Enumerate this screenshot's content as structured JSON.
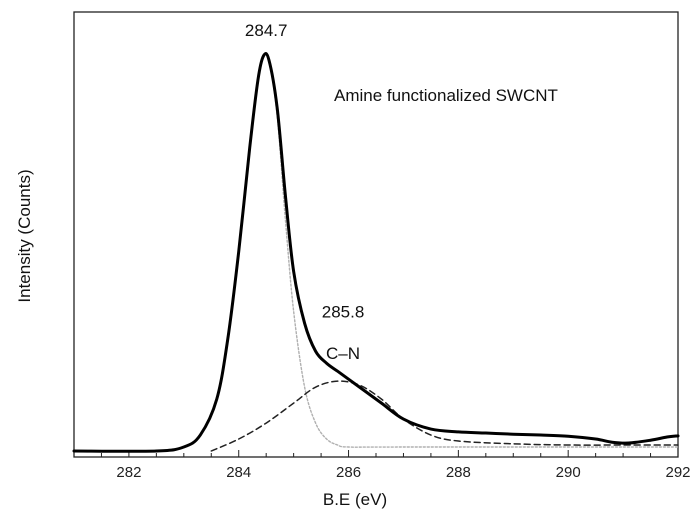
{
  "chart_data": {
    "type": "line",
    "title": "",
    "inset_label": "Amine functionalized SWCNT",
    "xlabel": "B.E (eV)",
    "ylabel": "Intensity (Counts)",
    "xlim": [
      281,
      292
    ],
    "ylim": [
      0,
      1
    ],
    "y_ticks_shown": false,
    "grid": false,
    "legend": "none",
    "x_ticks": [
      282,
      284,
      286,
      288,
      290,
      292
    ],
    "x_tick_labels": [
      "282",
      "284",
      "286",
      "288",
      "290",
      "292"
    ],
    "annotations": [
      {
        "text": "284.7",
        "x": 284.5,
        "y": 1.0
      },
      {
        "text": "285.8",
        "x": 285.9,
        "y": 0.28
      },
      {
        "text": "C–N",
        "x": 285.9,
        "y": 0.23
      }
    ],
    "series": [
      {
        "style": "solid-thick",
        "color": "#000000",
        "x": [
          281.0,
          282.5,
          283.0,
          283.3,
          283.6,
          283.8,
          284.0,
          284.2,
          284.35,
          284.45,
          284.55,
          284.7,
          284.85,
          285.0,
          285.2,
          285.4,
          285.6,
          285.8,
          286.0,
          286.3,
          286.6,
          287.0,
          287.5,
          288.0,
          288.5,
          289.0,
          289.5,
          290.0,
          290.5,
          290.8,
          291.1,
          291.5,
          291.8,
          292.0
        ],
        "y": [
          0.0,
          0.0,
          0.01,
          0.04,
          0.13,
          0.28,
          0.5,
          0.76,
          0.93,
          0.99,
          0.98,
          0.86,
          0.64,
          0.45,
          0.32,
          0.25,
          0.22,
          0.2,
          0.18,
          0.15,
          0.12,
          0.08,
          0.055,
          0.048,
          0.045,
          0.042,
          0.04,
          0.037,
          0.03,
          0.022,
          0.02,
          0.027,
          0.035,
          0.038
        ]
      },
      {
        "style": "dotted",
        "color": "#b0b0b0",
        "x": [
          282.5,
          283.0,
          283.3,
          283.6,
          283.8,
          284.0,
          284.2,
          284.35,
          284.45,
          284.55,
          284.7,
          284.85,
          285.0,
          285.2,
          285.4,
          285.6,
          285.8,
          286.0,
          287.0,
          292.0
        ],
        "y": [
          0.0,
          0.01,
          0.04,
          0.13,
          0.28,
          0.5,
          0.76,
          0.93,
          0.99,
          0.98,
          0.84,
          0.58,
          0.35,
          0.16,
          0.07,
          0.03,
          0.015,
          0.01,
          0.01,
          0.01
        ]
      },
      {
        "style": "dashed",
        "color": "#222222",
        "x": [
          283.5,
          284.0,
          284.5,
          285.0,
          285.4,
          285.8,
          286.2,
          286.6,
          287.0,
          287.5,
          288.0,
          289.0,
          290.0,
          291.0,
          292.0
        ],
        "y": [
          0.0,
          0.03,
          0.07,
          0.12,
          0.16,
          0.175,
          0.165,
          0.13,
          0.08,
          0.04,
          0.025,
          0.018,
          0.015,
          0.015,
          0.015
        ]
      }
    ]
  }
}
